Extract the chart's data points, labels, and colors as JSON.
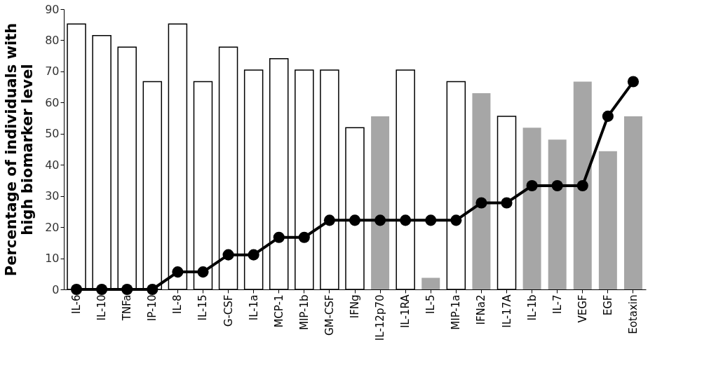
{
  "chart_data": {
    "type": "bar",
    "ylabel": "Percentage of individuals with\nhigh biomarker level",
    "categories": [
      "IL-6",
      "IL-10",
      "TNFa",
      "IP-10",
      "IL-8",
      "IL-15",
      "G-CSF",
      "IL-1a",
      "MCP-1",
      "MIP-1b",
      "GM-CSF",
      "IFNg",
      "IL-12p70",
      "IL-1RA",
      "IL-5",
      "MIP-1a",
      "IFNa2",
      "IL-17A",
      "IL-1b",
      "IL-7",
      "VEGF",
      "EGF",
      "Eotaxin"
    ],
    "series": [
      {
        "color": "#ffffff",
        "values": [
          85.2,
          81.5,
          77.8,
          66.7,
          85.2,
          66.7,
          77.8,
          70.4,
          74.1,
          70.4,
          70.4,
          51.9,
          null,
          70.4,
          null,
          66.7,
          null,
          55.6,
          null,
          null,
          null,
          null,
          null
        ]
      },
      {
        "color": "#a6a6a6",
        "values": [
          null,
          null,
          null,
          null,
          null,
          null,
          null,
          null,
          null,
          null,
          null,
          null,
          55.6,
          null,
          3.7,
          null,
          63.0,
          null,
          51.9,
          48.1,
          66.7,
          44.4,
          55.6
        ]
      },
      {
        "type": "line",
        "color": "#000000",
        "marker": "circle",
        "values": [
          0,
          0,
          0,
          0,
          5.6,
          5.6,
          11.1,
          11.1,
          16.7,
          16.7,
          22.2,
          22.2,
          22.2,
          22.2,
          22.2,
          22.2,
          27.8,
          27.8,
          33.3,
          33.3,
          33.3,
          55.6,
          66.7
        ]
      }
    ],
    "ylim": [
      0,
      90
    ],
    "yticks": [
      0,
      10,
      20,
      30,
      40,
      50,
      60,
      70,
      80,
      90
    ],
    "grid": false
  }
}
